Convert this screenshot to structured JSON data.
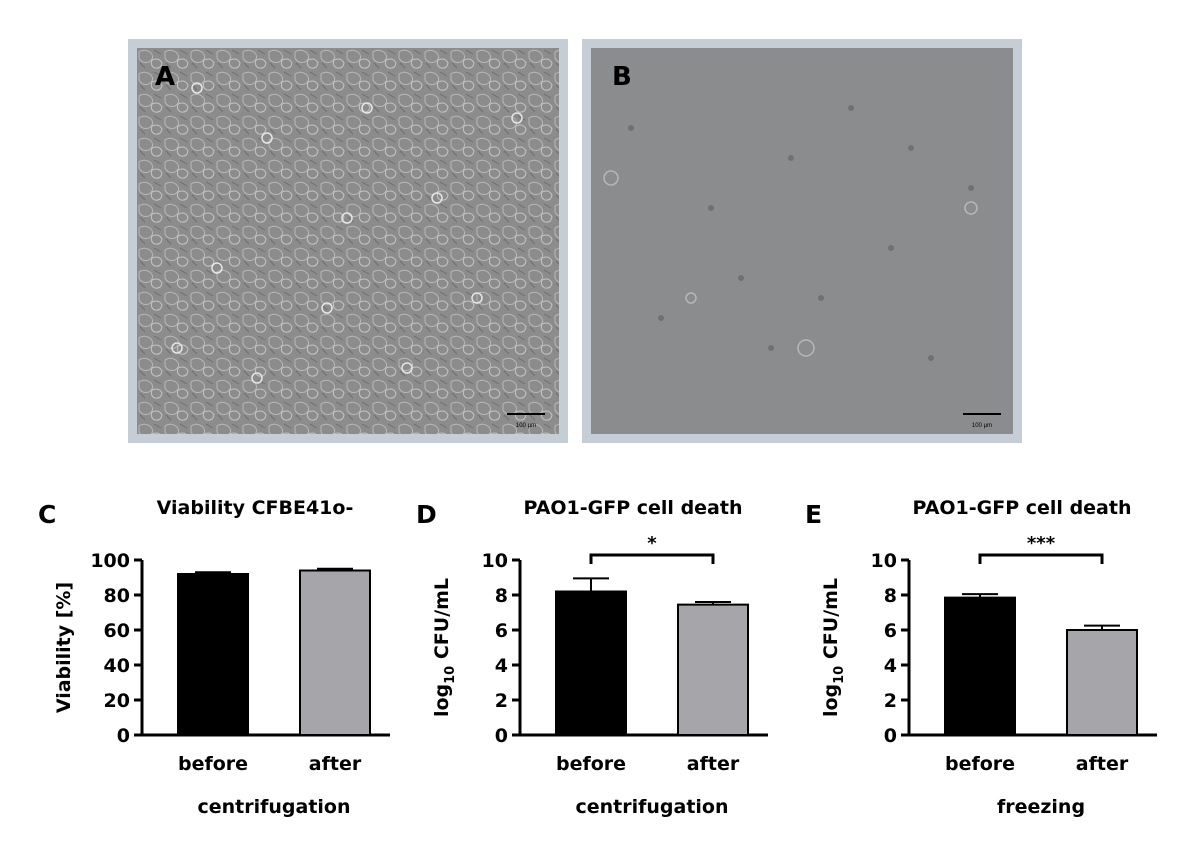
{
  "images": [
    {
      "label": "A",
      "scale_bar": "100 μm",
      "density": "confluent"
    },
    {
      "label": "B",
      "scale_bar": "100 μm",
      "density": "sparse"
    }
  ],
  "chart_data": [
    {
      "type": "bar",
      "panel": "C",
      "title": "Viability CFBE41o-",
      "ylabel": "Viability [%]",
      "xlabel": "centrifugation",
      "categories": [
        "before",
        "after"
      ],
      "values": [
        92,
        94
      ],
      "errors": [
        1,
        1
      ],
      "colors": [
        "#000000",
        "#a6a6aa"
      ],
      "ylim": [
        0,
        100
      ],
      "yticks": [
        0,
        20,
        40,
        60,
        80,
        100
      ],
      "significance": ""
    },
    {
      "type": "bar",
      "panel": "D",
      "title": "PAO1-GFP cell death",
      "ylabel_main": "log",
      "ylabel_sub": "10",
      "ylabel_rest": " CFU/mL",
      "xlabel": "centrifugation",
      "categories": [
        "before",
        "after"
      ],
      "values": [
        8.2,
        7.45
      ],
      "errors": [
        0.75,
        0.15
      ],
      "colors": [
        "#000000",
        "#a6a6aa"
      ],
      "ylim": [
        0,
        10
      ],
      "yticks": [
        0,
        2,
        4,
        6,
        8,
        10
      ],
      "significance": "*"
    },
    {
      "type": "bar",
      "panel": "E",
      "title": "PAO1-GFP cell death",
      "ylabel_main": "log",
      "ylabel_sub": "10",
      "ylabel_rest": " CFU/mL",
      "xlabel": "freezing",
      "categories": [
        "before",
        "after"
      ],
      "values": [
        7.85,
        6.0
      ],
      "errors": [
        0.2,
        0.25
      ],
      "colors": [
        "#000000",
        "#a6a6aa"
      ],
      "ylim": [
        0,
        10
      ],
      "yticks": [
        0,
        2,
        4,
        6,
        8,
        10
      ],
      "significance": "***"
    }
  ]
}
